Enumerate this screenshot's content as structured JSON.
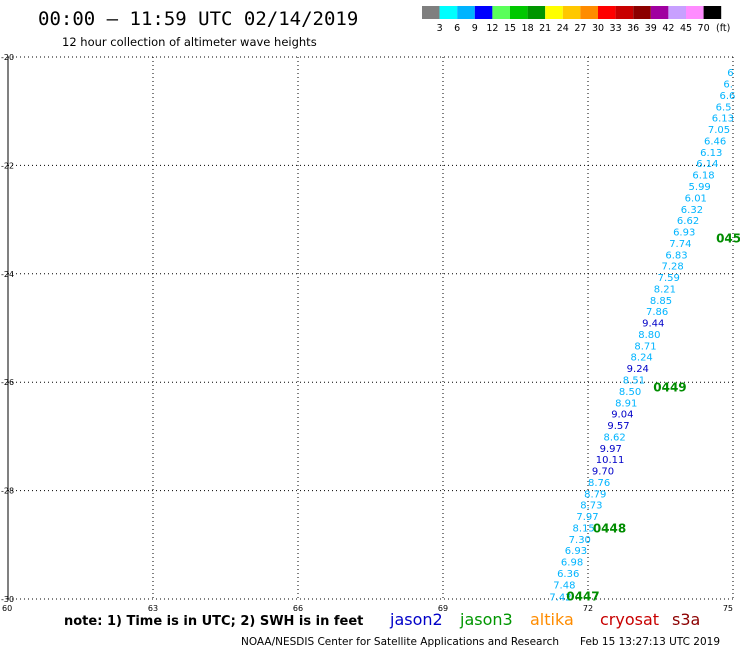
{
  "header": {
    "title": "00:00 – 11:59 UTC 02/14/2019",
    "subtitle": "12 hour collection of altimeter wave heights",
    "legend_unit": "(ft)"
  },
  "color_scale": [
    {
      "label": "3",
      "color": "#7f7f7f"
    },
    {
      "label": "6",
      "color": "#00ffff"
    },
    {
      "label": "9",
      "color": "#00b4ff"
    },
    {
      "label": "12",
      "color": "#0000ff"
    },
    {
      "label": "15",
      "color": "#5aff5a"
    },
    {
      "label": "18",
      "color": "#00c800"
    },
    {
      "label": "21",
      "color": "#009600"
    },
    {
      "label": "24",
      "color": "#ffff00"
    },
    {
      "label": "27",
      "color": "#ffc800"
    },
    {
      "label": "30",
      "color": "#ff8c00"
    },
    {
      "label": "33",
      "color": "#ff0000"
    },
    {
      "label": "36",
      "color": "#c80000"
    },
    {
      "label": "39",
      "color": "#8c0000"
    },
    {
      "label": "42",
      "color": "#a000a0"
    },
    {
      "label": "45",
      "color": "#c8a0ff"
    },
    {
      "label": "70",
      "color": "#ff8cff"
    },
    {
      "label": "",
      "color": "#000000"
    }
  ],
  "footer": {
    "note": "note: 1) Time is in UTC; 2) SWH is in feet",
    "credit": "NOAA/NESDIS Center for Satellite Applications and Research",
    "timestamp": "Feb 15 13:27:13 UTC 2019",
    "satellites": [
      {
        "name": "jason2",
        "color": "#0000c8"
      },
      {
        "name": "jason3",
        "color": "#009600"
      },
      {
        "name": "altika",
        "color": "#ff8c00"
      },
      {
        "name": "cryosat",
        "color": "#c80000"
      },
      {
        "name": "s3a",
        "color": "#8c0000"
      }
    ]
  },
  "chart_data": {
    "type": "scatter",
    "title": "00:00 – 11:59 UTC 02/14/2019",
    "subtitle": "12 hour collection of altimeter wave heights",
    "xlim": [
      60,
      75
    ],
    "ylim": [
      -30,
      -20
    ],
    "x_ticks": [
      "60",
      "63",
      "66",
      "69",
      "72",
      "75"
    ],
    "y_ticks": [
      "-20",
      "-22",
      "-24",
      "-26",
      "-28",
      "-30"
    ],
    "grid": true,
    "series": [
      {
        "name": "jason3",
        "value_labels": [
          {
            "x": 71.2,
            "y": -29.95,
            "text": "7.42",
            "color": "#00b4ff"
          },
          {
            "x": 71.28,
            "y": -29.73,
            "text": "7.48",
            "color": "#00b4ff"
          },
          {
            "x": 71.36,
            "y": -29.52,
            "text": "6.36",
            "color": "#00b4ff"
          },
          {
            "x": 71.44,
            "y": -29.31,
            "text": "6.98",
            "color": "#00b4ff"
          },
          {
            "x": 71.52,
            "y": -29.1,
            "text": "6.93",
            "color": "#00b4ff"
          },
          {
            "x": 71.6,
            "y": -28.89,
            "text": "7.30",
            "color": "#00b4ff"
          },
          {
            "x": 71.68,
            "y": -28.68,
            "text": "8.15",
            "color": "#00b4ff"
          },
          {
            "x": 71.76,
            "y": -28.47,
            "text": "7.97",
            "color": "#00b4ff"
          },
          {
            "x": 71.84,
            "y": -28.26,
            "text": "8.73",
            "color": "#00b4ff"
          },
          {
            "x": 71.92,
            "y": -28.05,
            "text": "8.79",
            "color": "#00b4ff"
          },
          {
            "x": 72.0,
            "y": -27.84,
            "text": "8.76",
            "color": "#00b4ff"
          },
          {
            "x": 72.08,
            "y": -27.63,
            "text": "9.70",
            "color": "#0000c8"
          },
          {
            "x": 72.16,
            "y": -27.42,
            "text": "10.11",
            "color": "#0000c8"
          },
          {
            "x": 72.24,
            "y": -27.21,
            "text": "9.97",
            "color": "#0000c8"
          },
          {
            "x": 72.32,
            "y": -27.0,
            "text": "8.62",
            "color": "#00b4ff"
          },
          {
            "x": 72.4,
            "y": -26.79,
            "text": "9.57",
            "color": "#0000c8"
          },
          {
            "x": 72.48,
            "y": -26.58,
            "text": "9.04",
            "color": "#0000c8"
          },
          {
            "x": 72.56,
            "y": -26.37,
            "text": "8.91",
            "color": "#00b4ff"
          },
          {
            "x": 72.64,
            "y": -26.16,
            "text": "8.50",
            "color": "#00b4ff"
          },
          {
            "x": 72.72,
            "y": -25.95,
            "text": "8.51",
            "color": "#00b4ff"
          },
          {
            "x": 72.8,
            "y": -25.74,
            "text": "9.24",
            "color": "#0000c8"
          },
          {
            "x": 72.88,
            "y": -25.53,
            "text": "8.24",
            "color": "#00b4ff"
          },
          {
            "x": 72.96,
            "y": -25.32,
            "text": "8.71",
            "color": "#00b4ff"
          },
          {
            "x": 73.04,
            "y": -25.11,
            "text": "8.80",
            "color": "#00b4ff"
          },
          {
            "x": 73.12,
            "y": -24.9,
            "text": "9.44",
            "color": "#0000c8"
          },
          {
            "x": 73.2,
            "y": -24.69,
            "text": "7.86",
            "color": "#00b4ff"
          },
          {
            "x": 73.28,
            "y": -24.48,
            "text": "8.85",
            "color": "#00b4ff"
          },
          {
            "x": 73.36,
            "y": -24.27,
            "text": "8.21",
            "color": "#00b4ff"
          },
          {
            "x": 73.44,
            "y": -24.06,
            "text": "7.59",
            "color": "#00b4ff"
          },
          {
            "x": 73.52,
            "y": -23.85,
            "text": "7.28",
            "color": "#00b4ff"
          },
          {
            "x": 73.6,
            "y": -23.64,
            "text": "6.83",
            "color": "#00b4ff"
          },
          {
            "x": 73.68,
            "y": -23.43,
            "text": "7.74",
            "color": "#00b4ff"
          },
          {
            "x": 73.76,
            "y": -23.22,
            "text": "6.93",
            "color": "#00b4ff"
          },
          {
            "x": 73.84,
            "y": -23.01,
            "text": "6.62",
            "color": "#00b4ff"
          },
          {
            "x": 73.92,
            "y": -22.8,
            "text": "6.32",
            "color": "#00b4ff"
          },
          {
            "x": 74.0,
            "y": -22.59,
            "text": "6.01",
            "color": "#00b4ff"
          },
          {
            "x": 74.08,
            "y": -22.38,
            "text": "5.99",
            "color": "#00b4ff"
          },
          {
            "x": 74.16,
            "y": -22.17,
            "text": "6.18",
            "color": "#00b4ff"
          },
          {
            "x": 74.24,
            "y": -21.96,
            "text": "6.14",
            "color": "#00b4ff"
          },
          {
            "x": 74.32,
            "y": -21.75,
            "text": "6.13",
            "color": "#00b4ff"
          },
          {
            "x": 74.4,
            "y": -21.54,
            "text": "6.46",
            "color": "#00b4ff"
          },
          {
            "x": 74.48,
            "y": -21.33,
            "text": "7.05",
            "color": "#00b4ff"
          },
          {
            "x": 74.56,
            "y": -21.12,
            "text": "6.13",
            "color": "#00b4ff"
          },
          {
            "x": 74.64,
            "y": -20.91,
            "text": "6.5",
            "color": "#00b4ff"
          },
          {
            "x": 74.72,
            "y": -20.7,
            "text": "6.6",
            "color": "#00b4ff"
          },
          {
            "x": 74.8,
            "y": -20.49,
            "text": "6.",
            "color": "#00b4ff"
          },
          {
            "x": 74.88,
            "y": -20.28,
            "text": "6",
            "color": "#00b4ff"
          }
        ],
        "time_labels": [
          {
            "x": 71.55,
            "y": -29.95,
            "text": "0447"
          },
          {
            "x": 72.1,
            "y": -28.7,
            "text": "0448"
          },
          {
            "x": 73.35,
            "y": -26.1,
            "text": "0449"
          },
          {
            "x": 74.65,
            "y": -23.35,
            "text": "045"
          }
        ]
      }
    ]
  }
}
